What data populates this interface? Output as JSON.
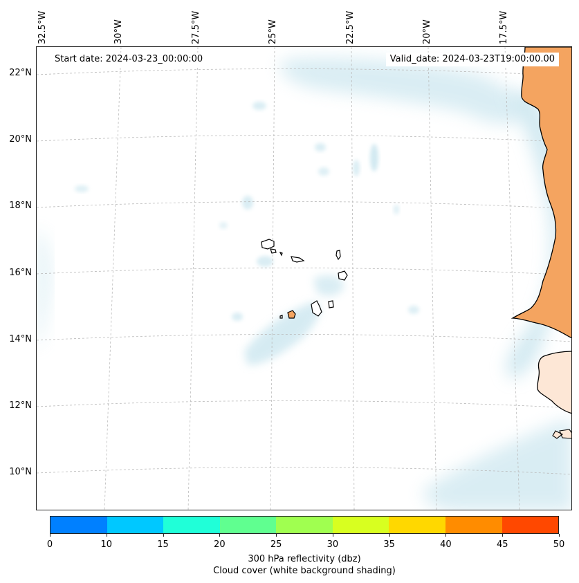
{
  "map": {
    "start_date": "Start date: 2024-03-23_00:00:00",
    "valid_date": "Valid_date: 2024-03-23T19:00:00.00",
    "lon_labels": [
      "32.5°W",
      "30°W",
      "27.5°W",
      "25°W",
      "22.5°W",
      "20°W",
      "17.5°W"
    ],
    "lat_labels": [
      "22°N",
      "20°N",
      "18°N",
      "16°N",
      "14°N",
      "12°N",
      "10°N"
    ],
    "land_color": "#f4a460",
    "ocean_color": "#ffffff",
    "cloud_color": "#add8e6",
    "gridlines": true
  },
  "colorbar": {
    "ticks": [
      "0",
      "10",
      "15",
      "20",
      "25",
      "30",
      "35",
      "40",
      "45",
      "50"
    ],
    "colors": [
      "#0080ff",
      "#00c8ff",
      "#20ffd8",
      "#60ff90",
      "#a0ff50",
      "#d8ff20",
      "#ffd800",
      "#ff8c00",
      "#ff4800"
    ],
    "label_line1": "300 hPa reflectivity (dbz)",
    "label_line2": "Cloud cover (white background shading)"
  }
}
